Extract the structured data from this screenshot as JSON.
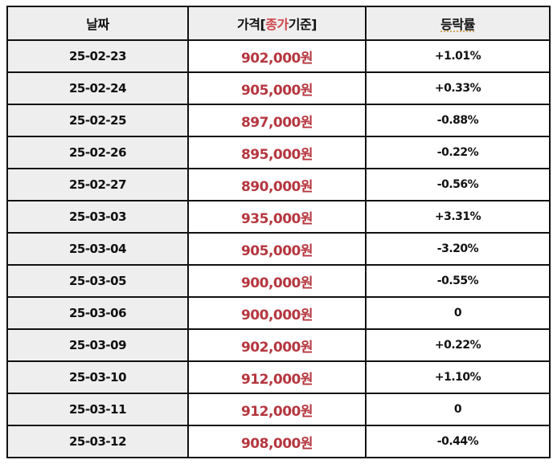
{
  "table": {
    "headers": {
      "date": "날짜",
      "price_prefix": "가격[",
      "price_highlight": "종가",
      "price_suffix": "기준]",
      "change": "등락률"
    },
    "colors": {
      "price_text": "#b5363f",
      "header_highlight": "#d0444b",
      "header_bg": "#eeeeee",
      "border": "#111111"
    },
    "rows": [
      {
        "date": "25-02-23",
        "price": "902,000원",
        "change": "+1.01%"
      },
      {
        "date": "25-02-24",
        "price": "905,000원",
        "change": "+0.33%"
      },
      {
        "date": "25-02-25",
        "price": "897,000원",
        "change": "-0.88%"
      },
      {
        "date": "25-02-26",
        "price": "895,000원",
        "change": "-0.22%"
      },
      {
        "date": "25-02-27",
        "price": "890,000원",
        "change": "-0.56%"
      },
      {
        "date": "25-03-03",
        "price": "935,000원",
        "change": "+3.31%"
      },
      {
        "date": "25-03-04",
        "price": "905,000원",
        "change": "-3.20%"
      },
      {
        "date": "25-03-05",
        "price": "900,000원",
        "change": "-0.55%"
      },
      {
        "date": "25-03-06",
        "price": "900,000원",
        "change": "0"
      },
      {
        "date": "25-03-09",
        "price": "902,000원",
        "change": "+0.22%"
      },
      {
        "date": "25-03-10",
        "price": "912,000원",
        "change": "+1.10%"
      },
      {
        "date": "25-03-11",
        "price": "912,000원",
        "change": "0"
      },
      {
        "date": "25-03-12",
        "price": "908,000원",
        "change": "-0.44%"
      }
    ]
  }
}
